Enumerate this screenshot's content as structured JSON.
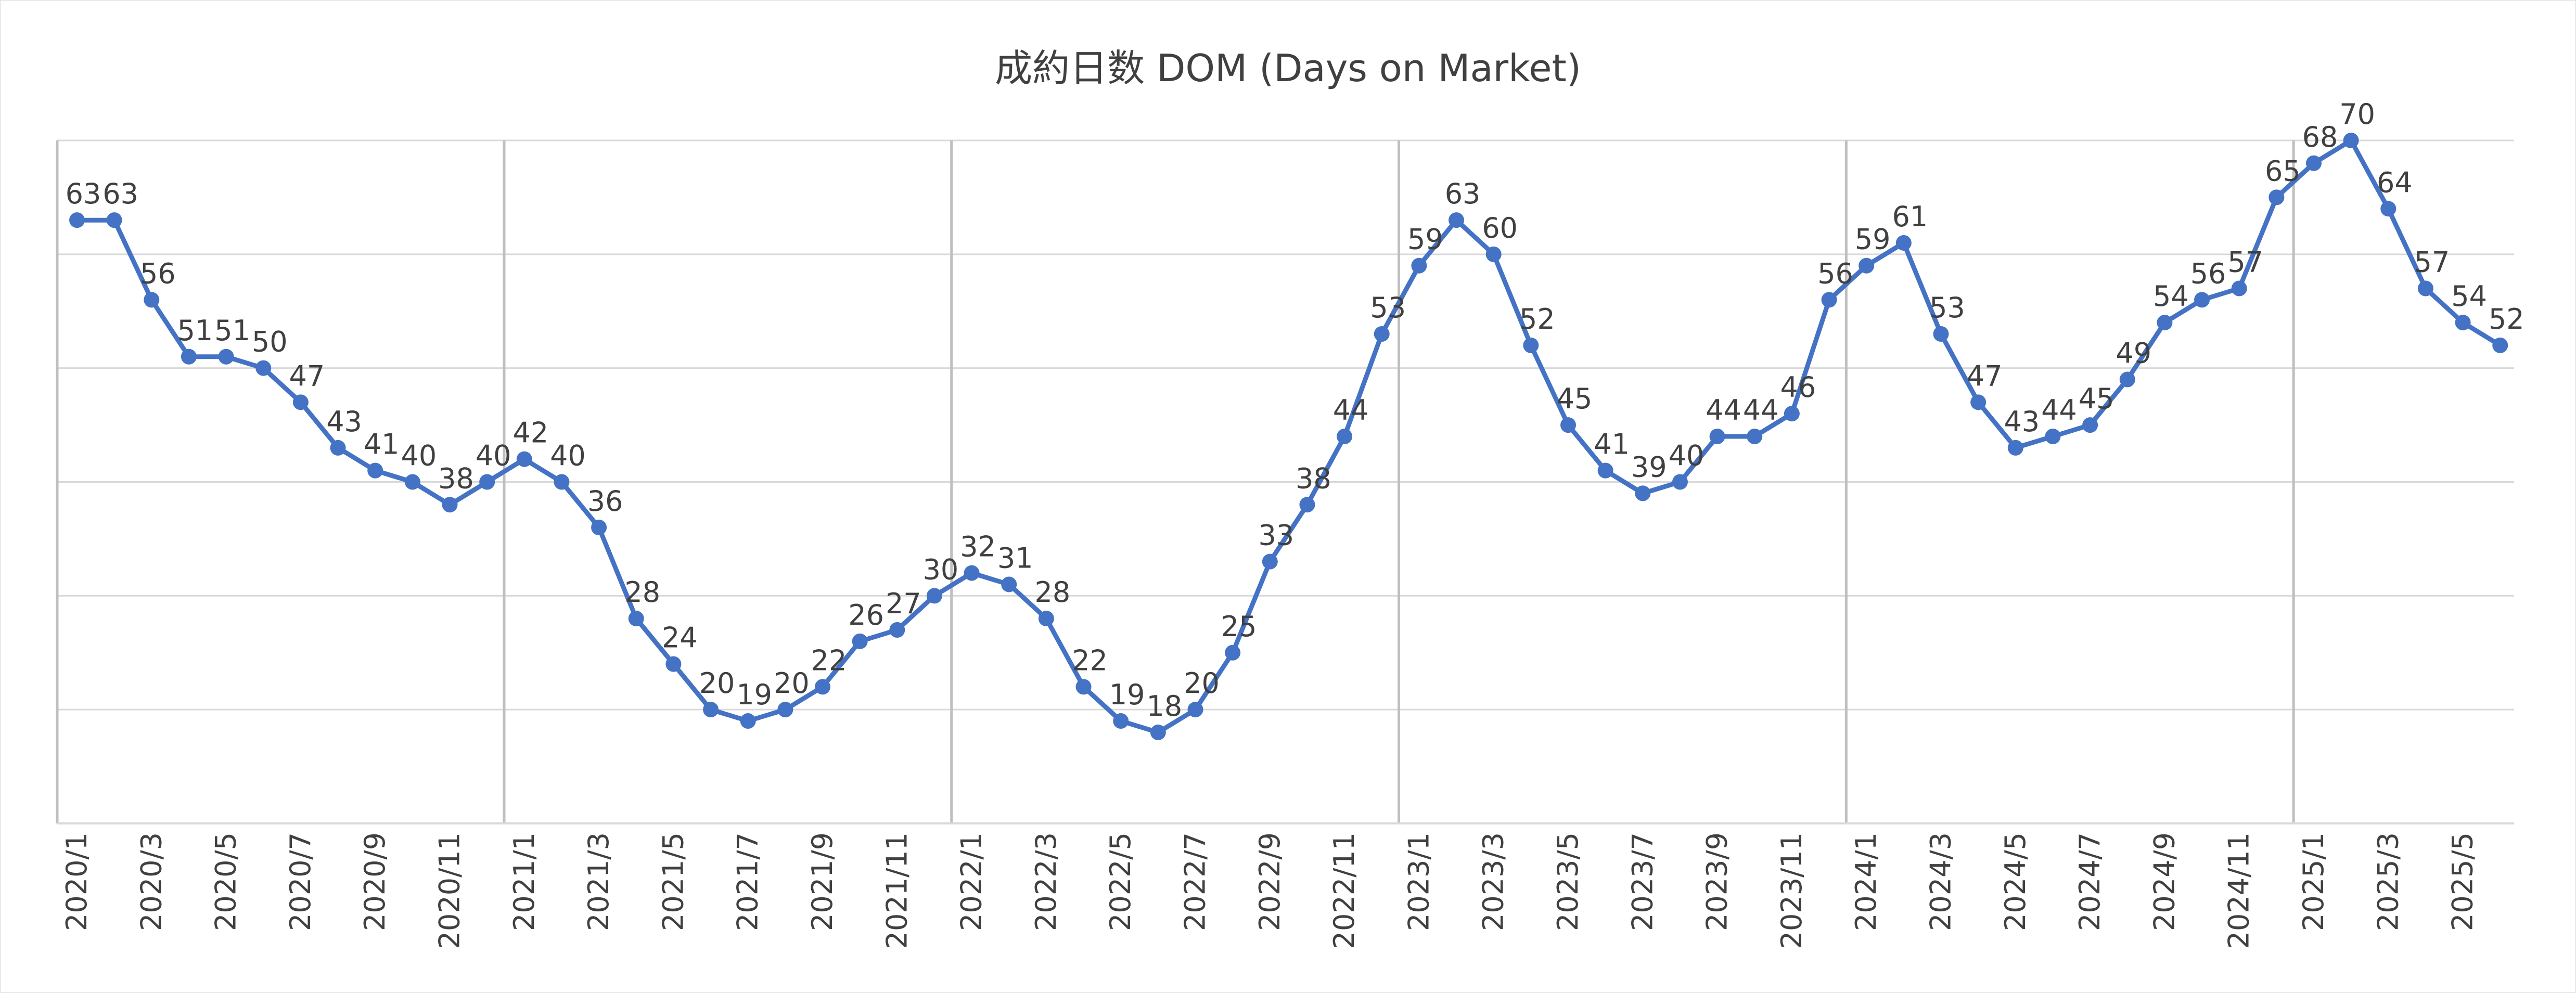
{
  "chart_data": {
    "type": "line",
    "title": "成約日数 DOM (Days on Market)",
    "xlabel": "",
    "ylabel": "",
    "ylim": [
      10,
      70
    ],
    "grid": true,
    "legend": "none",
    "line_color": "#4472c4",
    "grid_color": "#d9d9d9",
    "year_divider_color": "#bfbfbf",
    "label_color": "#404040",
    "x_tick_labels": [
      "2020/1",
      "2020/3",
      "2020/5",
      "2020/7",
      "2020/9",
      "2020/11",
      "2021/1",
      "2021/3",
      "2021/5",
      "2021/7",
      "2021/9",
      "2021/11",
      "2022/1",
      "2022/3",
      "2022/5",
      "2022/7",
      "2022/9",
      "2022/11",
      "2023/1",
      "2023/3",
      "2023/5",
      "2023/7",
      "2023/9",
      "2023/11",
      "2024/1",
      "2024/3",
      "2024/5",
      "2024/7",
      "2024/9",
      "2024/11",
      "2025/1",
      "2025/3",
      "2025/5"
    ],
    "categories": [
      "2020/1",
      "2020/2",
      "2020/3",
      "2020/4",
      "2020/5",
      "2020/6",
      "2020/7",
      "2020/8",
      "2020/9",
      "2020/10",
      "2020/11",
      "2020/12",
      "2021/1",
      "2021/2",
      "2021/3",
      "2021/4",
      "2021/5",
      "2021/6",
      "2021/7",
      "2021/8",
      "2021/9",
      "2021/10",
      "2021/11",
      "2021/12",
      "2022/1",
      "2022/2",
      "2022/3",
      "2022/4",
      "2022/5",
      "2022/6",
      "2022/7",
      "2022/8",
      "2022/9",
      "2022/10",
      "2022/11",
      "2022/12",
      "2023/1",
      "2023/2",
      "2023/3",
      "2023/4",
      "2023/5",
      "2023/6",
      "2023/7",
      "2023/8",
      "2023/9",
      "2023/10",
      "2023/11",
      "2023/12",
      "2024/1",
      "2024/2",
      "2024/3",
      "2024/4",
      "2024/5",
      "2024/6",
      "2024/7",
      "2024/8",
      "2024/9",
      "2024/10",
      "2024/11",
      "2024/12",
      "2025/1",
      "2025/2",
      "2025/3",
      "2025/4",
      "2025/5",
      "2025/6"
    ],
    "values": [
      63,
      63,
      56,
      51,
      51,
      50,
      47,
      43,
      41,
      40,
      38,
      40,
      42,
      40,
      36,
      28,
      24,
      20,
      19,
      20,
      22,
      26,
      27,
      30,
      32,
      31,
      28,
      22,
      19,
      18,
      20,
      25,
      33,
      38,
      44,
      53,
      59,
      63,
      60,
      52,
      45,
      41,
      39,
      40,
      44,
      44,
      46,
      56,
      59,
      61,
      53,
      47,
      43,
      44,
      45,
      49,
      54,
      56,
      57,
      65,
      68,
      70,
      64,
      57,
      54,
      52
    ]
  }
}
